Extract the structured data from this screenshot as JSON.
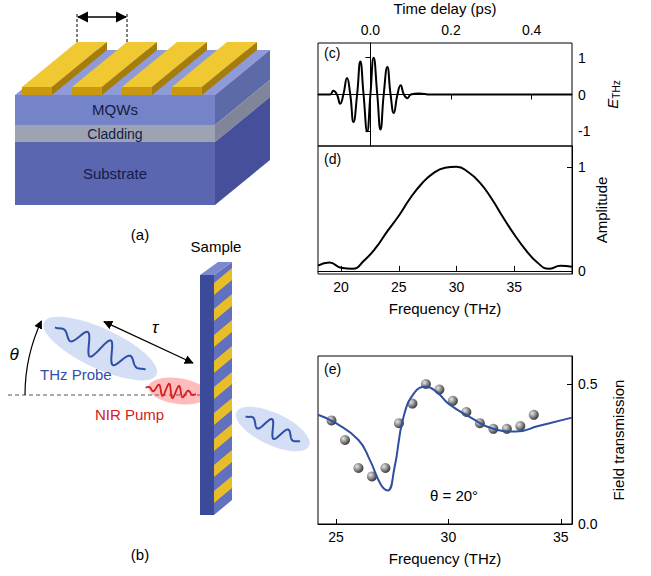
{
  "panels": {
    "a": {
      "label": "(a)",
      "layers": [
        "MQWs",
        "Cladding",
        "Substrate"
      ]
    },
    "b": {
      "label": "(b)",
      "texts": {
        "probe": "THz Probe",
        "pump": "NIR Pump",
        "sample": "Sample",
        "delay": "τ",
        "angle": "θ"
      }
    }
  },
  "chart_data": [
    {
      "type": "line",
      "panel_label": "(c)",
      "x_label": "Time delay (ps)",
      "y_label": {
        "text": "E",
        "subscript": "THz"
      },
      "x": [
        -0.13,
        -0.1,
        -0.092,
        -0.083,
        -0.075,
        -0.067,
        -0.058,
        -0.05,
        -0.042,
        -0.033,
        -0.025,
        -0.017,
        -0.008,
        0,
        0.008,
        0.017,
        0.025,
        0.033,
        0.042,
        0.05,
        0.058,
        0.067,
        0.075,
        0.083,
        0.092,
        0.1,
        0.12,
        0.15,
        0.2,
        0.3,
        0.4,
        0.5
      ],
      "values": [
        0,
        0,
        0.1,
        0,
        -0.25,
        0,
        0.45,
        0,
        -0.75,
        0,
        0.9,
        0,
        -1,
        0,
        1,
        0,
        -0.95,
        0,
        0.75,
        0,
        -0.5,
        0,
        0.25,
        0,
        -0.1,
        0,
        0.03,
        0,
        0,
        0,
        0,
        0
      ],
      "color": "#000000",
      "xlim": [
        -0.13,
        0.5
      ],
      "xticks": [
        {
          "value": 0,
          "label": "0.0"
        },
        {
          "value": 0.2,
          "label": "0.2"
        },
        {
          "value": 0.4,
          "label": "0.4"
        }
      ],
      "ylim": [
        -1.4,
        1.4
      ],
      "yticks": [
        -1,
        0,
        1
      ],
      "grid": false
    },
    {
      "type": "line",
      "panel_label": "(d)",
      "x_label": "Frequency (THz)",
      "y_label": "Amplitude",
      "x": [
        18,
        19,
        20,
        21,
        22,
        23,
        24,
        25,
        26,
        27,
        28,
        29,
        30,
        31,
        32,
        33,
        34,
        35,
        36,
        37,
        38,
        39,
        40
      ],
      "values": [
        0.05,
        0.08,
        0.03,
        0.02,
        0.1,
        0.22,
        0.38,
        0.53,
        0.7,
        0.84,
        0.94,
        0.99,
        1.0,
        0.95,
        0.85,
        0.7,
        0.52,
        0.35,
        0.2,
        0.08,
        0.02,
        0.05,
        0.04
      ],
      "color": "#000000",
      "xlim": [
        18,
        40
      ],
      "xticks": [
        20,
        25,
        30,
        35
      ],
      "ylim": [
        -0.03,
        1.2
      ],
      "yticks": [
        0,
        1
      ],
      "grid": false
    },
    {
      "type": "line",
      "panel_label": "(e)",
      "x_label": "Frequency (THz)",
      "y_label": "Field transmission",
      "annotation": "θ = 20°",
      "series": [
        {
          "type": "scatter",
          "color": "#000000",
          "marker": "circle",
          "x": [
            24.8,
            25.4,
            26.0,
            26.6,
            27.2,
            27.8,
            28.4,
            29.0,
            29.6,
            30.2,
            30.8,
            31.4,
            32.0,
            32.6,
            33.2,
            33.8
          ],
          "values": [
            0.37,
            0.3,
            0.2,
            0.17,
            0.2,
            0.36,
            0.43,
            0.5,
            0.48,
            0.44,
            0.4,
            0.36,
            0.34,
            0.34,
            0.35,
            0.39
          ]
        },
        {
          "type": "line",
          "color": "#2f4fa0",
          "line_style": "solid",
          "x": [
            24.2,
            25,
            26,
            26.5,
            27,
            27.3,
            27.6,
            28,
            28.5,
            29,
            29.5,
            30,
            31,
            32,
            33,
            34,
            35,
            35.5
          ],
          "values": [
            0.39,
            0.36,
            0.3,
            0.23,
            0.14,
            0.12,
            0.2,
            0.38,
            0.47,
            0.49,
            0.47,
            0.43,
            0.38,
            0.34,
            0.33,
            0.35,
            0.37,
            0.38
          ]
        }
      ],
      "xlim": [
        24.2,
        35.5
      ],
      "xticks": [
        25,
        30,
        35
      ],
      "ylim": [
        0,
        0.6
      ],
      "yticks": [
        {
          "value": 0,
          "label": "0.0"
        },
        0.5
      ],
      "grid": false
    }
  ]
}
